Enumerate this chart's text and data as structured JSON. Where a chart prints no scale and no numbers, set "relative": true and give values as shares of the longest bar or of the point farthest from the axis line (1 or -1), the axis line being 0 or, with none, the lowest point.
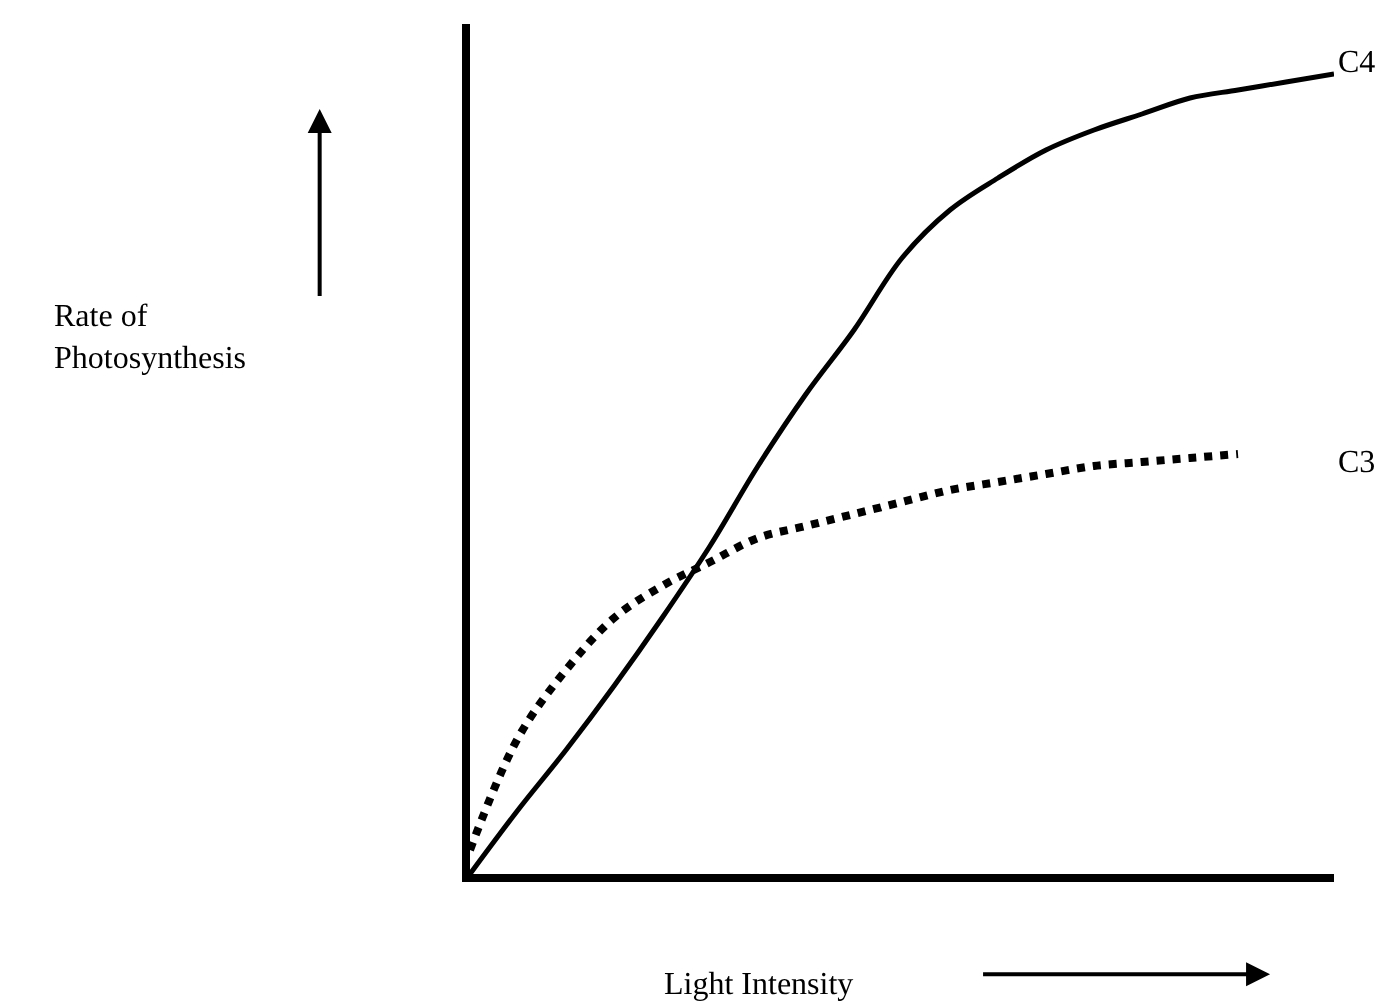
{
  "chart_data": {
    "type": "line",
    "relative": true,
    "xlabel": "Light Intensity",
    "annotations": [
      "Rate of\nPhotosynthesis"
    ],
    "legend": false,
    "marker": "none",
    "categories": [
      null,
      null,
      null,
      null,
      null,
      null,
      null,
      null,
      null,
      null,
      null,
      null,
      null,
      null,
      null,
      null,
      null,
      null,
      null
    ],
    "series": [
      {
        "name": "C4",
        "color": "#000000",
        "line_style": "solid",
        "values": [
          0,
          0.08,
          0.155,
          0.235,
          0.32,
          0.41,
          0.51,
          0.6,
          0.68,
          0.77,
          0.83,
          0.87,
          0.905,
          0.93,
          0.95,
          0.97,
          0.98,
          0.99,
          1.0
        ]
      },
      {
        "name": "C3",
        "color": "#000000",
        "line_style": "dotted",
        "values": [
          0.03,
          0.17,
          0.255,
          0.32,
          0.36,
          0.39,
          0.42,
          0.435,
          0.45,
          0.465,
          0.48,
          0.49,
          0.5,
          0.51,
          0.515,
          0.52,
          0.525,
          null,
          null
        ]
      }
    ]
  }
}
